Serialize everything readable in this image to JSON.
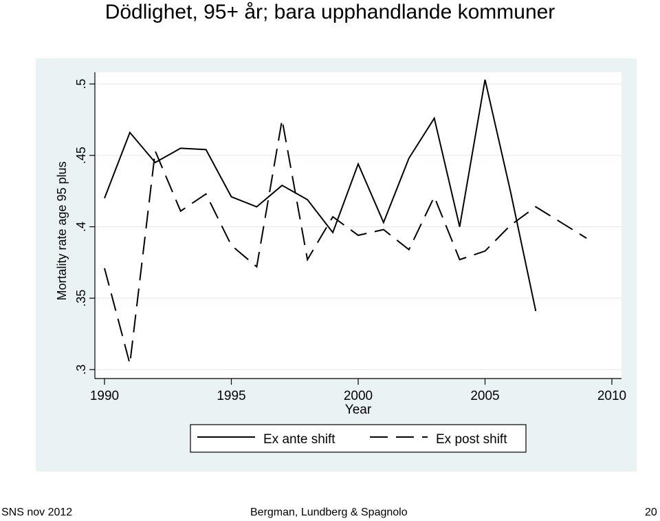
{
  "slide": {
    "title": "Dödlighet, 95+ år; bara upphandlande kommuner"
  },
  "footer": {
    "left": "SNS nov 2012",
    "center": "Bergman, Lundberg & Spagnolo",
    "page": "20"
  },
  "chart_data": {
    "type": "line",
    "title": "",
    "xlabel": "Year",
    "ylabel": "Mortality rate age 95 plus",
    "xlim": [
      1990,
      2010
    ],
    "ylim": [
      0.3,
      0.5
    ],
    "xticks": [
      1990,
      1995,
      2000,
      2005,
      2010
    ],
    "xtick_labels": [
      "1990",
      "1995",
      "2000",
      "2005",
      "2010"
    ],
    "yticks": [
      0.3,
      0.35,
      0.4,
      0.45,
      0.5
    ],
    "ytick_labels": [
      ".3",
      ".35",
      ".4",
      ".45",
      ".5"
    ],
    "grid": "horizontal",
    "legend_position": "bottom",
    "colors": {
      "plot_bg": "#ffffff",
      "outer_bg": "#eaf2f3",
      "line": "#000000"
    },
    "series": [
      {
        "name": "Ex ante shift",
        "style": "solid",
        "x": [
          1990,
          1991,
          1992,
          1993,
          1994,
          1995,
          1996,
          1997,
          1998,
          1999,
          2000,
          2001,
          2002,
          2003,
          2004,
          2005,
          2006,
          2007
        ],
        "y": [
          0.42,
          0.466,
          0.445,
          0.455,
          0.454,
          0.421,
          0.414,
          0.429,
          0.419,
          0.396,
          0.444,
          0.403,
          0.448,
          0.476,
          0.4,
          0.503,
          0.425,
          0.341
        ]
      },
      {
        "name": "Ex post shift",
        "style": "dashed",
        "x": [
          1990,
          1991,
          1992,
          1993,
          1994,
          1995,
          1996,
          1997,
          1998,
          1999,
          2000,
          2001,
          2002,
          2003,
          2004,
          2005,
          2006,
          2007,
          2008,
          2009
        ],
        "y": [
          0.371,
          0.304,
          0.453,
          0.411,
          0.423,
          0.387,
          0.372,
          0.475,
          0.377,
          0.407,
          0.394,
          0.398,
          0.384,
          0.421,
          0.377,
          0.383,
          0.401,
          0.414,
          0.403,
          0.392
        ]
      }
    ]
  }
}
